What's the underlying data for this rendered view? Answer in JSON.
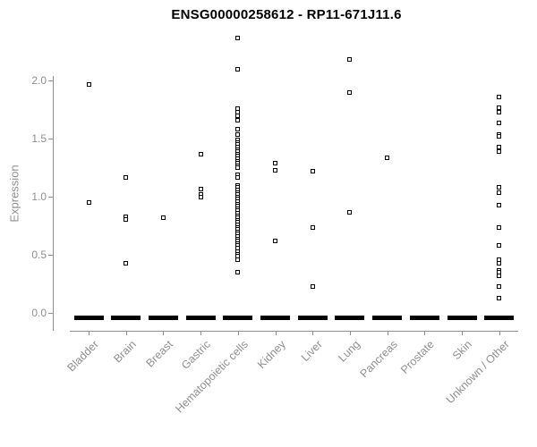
{
  "title": "ENSG00000258612 - RP11-671J11.6",
  "chart_data": {
    "type": "scatter",
    "title": "ENSG00000258612 - RP11-671J11.6",
    "subtitle": "",
    "xlabel": "",
    "ylabel": "Expression",
    "ylim": [
      0,
      2.45
    ],
    "ytick_labels": [
      "0.0",
      "0.5",
      "1.0",
      "1.5",
      "2.0"
    ],
    "yticks": [
      0.0,
      0.5,
      1.0,
      1.5,
      2.0
    ],
    "grid": false,
    "legend_position": "none",
    "marker_style": "open-square",
    "colors": {
      "marker": "#000000",
      "axis": "#8f8f8f",
      "tick_labels": "#8f8f8f",
      "title": "#000000",
      "background": "#ffffff"
    },
    "categories": [
      "Bladder",
      "Brain",
      "Breast",
      "Gastric",
      "Hematopoietic cells",
      "Kidney",
      "Liver",
      "Lung",
      "Pancreas",
      "Prostate",
      "Skin",
      "Unknown / Other"
    ],
    "series": [
      {
        "category": "Bladder",
        "values": [
          1.97,
          0.95
        ],
        "zero_cluster": true
      },
      {
        "category": "Brain",
        "values": [
          1.17,
          0.83,
          0.81,
          0.43
        ],
        "zero_cluster": true
      },
      {
        "category": "Breast",
        "values": [
          0.82
        ],
        "zero_cluster": true
      },
      {
        "category": "Gastric",
        "values": [
          1.37,
          1.07,
          1.02,
          1.0
        ],
        "zero_cluster": true
      },
      {
        "category": "Hematopoietic cells",
        "values": [
          2.37,
          2.1,
          1.76,
          1.73,
          1.7,
          1.66,
          1.58,
          1.54,
          1.49,
          1.47,
          1.45,
          1.43,
          1.41,
          1.39,
          1.37,
          1.35,
          1.33,
          1.31,
          1.29,
          1.27,
          1.25,
          1.19,
          1.17,
          1.1,
          1.08,
          1.06,
          1.04,
          1.02,
          1.0,
          0.98,
          0.96,
          0.94,
          0.92,
          0.9,
          0.88,
          0.86,
          0.84,
          0.82,
          0.8,
          0.78,
          0.76,
          0.74,
          0.72,
          0.7,
          0.68,
          0.66,
          0.64,
          0.62,
          0.6,
          0.58,
          0.56,
          0.53,
          0.51,
          0.49,
          0.46,
          0.35
        ],
        "zero_cluster": true
      },
      {
        "category": "Kidney",
        "values": [
          1.29,
          1.23,
          0.62
        ],
        "zero_cluster": true
      },
      {
        "category": "Liver",
        "values": [
          1.22,
          0.74,
          0.23
        ],
        "zero_cluster": true
      },
      {
        "category": "Lung",
        "values": [
          2.18,
          1.9,
          0.87
        ],
        "zero_cluster": true
      },
      {
        "category": "Pancreas",
        "values": [
          1.34
        ],
        "zero_cluster": true
      },
      {
        "category": "Prostate",
        "values": [],
        "zero_cluster": true
      },
      {
        "category": "Skin",
        "values": [],
        "zero_cluster": true
      },
      {
        "category": "Unknown / Other",
        "values": [
          1.86,
          1.77,
          1.73,
          1.64,
          1.54,
          1.52,
          1.43,
          1.39,
          1.08,
          1.04,
          0.93,
          0.74,
          0.58,
          0.46,
          0.43,
          0.37,
          0.35,
          0.32,
          0.23,
          0.13
        ],
        "zero_cluster": true
      }
    ]
  }
}
